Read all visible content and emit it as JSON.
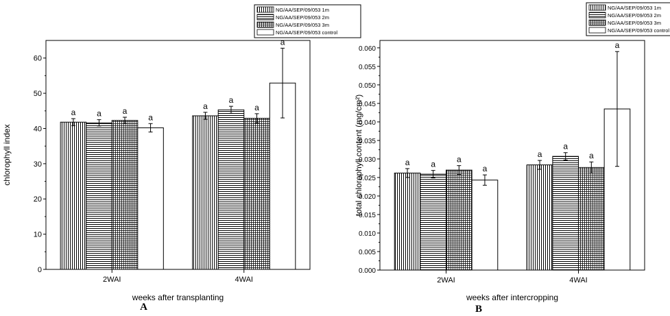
{
  "chart_data": [
    {
      "type": "bar",
      "panel_label": "A",
      "categories": [
        "2WAI",
        "4WAI"
      ],
      "xlabel": "weeks after transplanting",
      "ylabel": "chlorophyll index",
      "ylim": [
        0,
        65
      ],
      "yticks": [
        0,
        10,
        20,
        30,
        40,
        50,
        60
      ],
      "ytick_labels": [
        "0",
        "10",
        "20",
        "30",
        "40",
        "50",
        "60"
      ],
      "legend_position": "top-right, outside plot",
      "grid": false,
      "series": [
        {
          "name": "NG/AA/SEP/09/053 1m",
          "pattern": "vertical-lines",
          "values": [
            41.8,
            43.6
          ],
          "errors": [
            1.0,
            1.0
          ],
          "letters": [
            "a",
            "a"
          ]
        },
        {
          "name": "NG/AA/SEP/09/053 2m",
          "pattern": "horizontal-lines",
          "values": [
            41.6,
            45.3
          ],
          "errors": [
            0.9,
            1.0
          ],
          "letters": [
            "a",
            "a"
          ]
        },
        {
          "name": "NG/AA/SEP/09/053 3m",
          "pattern": "grid",
          "values": [
            42.3,
            42.9
          ],
          "errors": [
            0.9,
            1.3
          ],
          "letters": [
            "a",
            "a"
          ]
        },
        {
          "name": "NG/AA/SEP/09/053 control",
          "pattern": "empty",
          "values": [
            40.2,
            52.9
          ],
          "errors": [
            1.2,
            9.9
          ],
          "letters": [
            "a",
            "a"
          ]
        }
      ]
    },
    {
      "type": "bar",
      "panel_label": "B",
      "categories": [
        "2WAI",
        "4WAI"
      ],
      "xlabel": "weeks after intercropping",
      "ylabel": "total chlorophyll content (mg/cm²)",
      "ylim": [
        0,
        0.062
      ],
      "yticks": [
        0,
        0.005,
        0.01,
        0.015,
        0.02,
        0.025,
        0.03,
        0.035,
        0.04,
        0.045,
        0.05,
        0.055,
        0.06
      ],
      "ytick_labels": [
        "0.000",
        "0.005",
        "0.010",
        "0.015",
        "0.020",
        "0.025",
        "0.030",
        "0.035",
        "0.040",
        "0.045",
        "0.050",
        "0.055",
        "0.060"
      ],
      "legend_position": "top-right, outside plot",
      "grid": false,
      "series": [
        {
          "name": "NG/AA/SEP/09/053 1m",
          "pattern": "vertical-lines",
          "values": [
            0.0262,
            0.0284
          ],
          "errors": [
            0.0012,
            0.0012
          ],
          "letters": [
            "a",
            "a"
          ]
        },
        {
          "name": "NG/AA/SEP/09/053 2m",
          "pattern": "horizontal-lines",
          "values": [
            0.0259,
            0.0307
          ],
          "errors": [
            0.001,
            0.001
          ],
          "letters": [
            "a",
            "a"
          ]
        },
        {
          "name": "NG/AA/SEP/09/053 3m",
          "pattern": "grid",
          "values": [
            0.027,
            0.0277
          ],
          "errors": [
            0.0012,
            0.0015
          ],
          "letters": [
            "a",
            "a"
          ]
        },
        {
          "name": "NG/AA/SEP/09/053 control",
          "pattern": "empty",
          "values": [
            0.0243,
            0.0435
          ],
          "errors": [
            0.0014,
            0.0155
          ],
          "letters": [
            "a",
            "a"
          ]
        }
      ]
    }
  ]
}
